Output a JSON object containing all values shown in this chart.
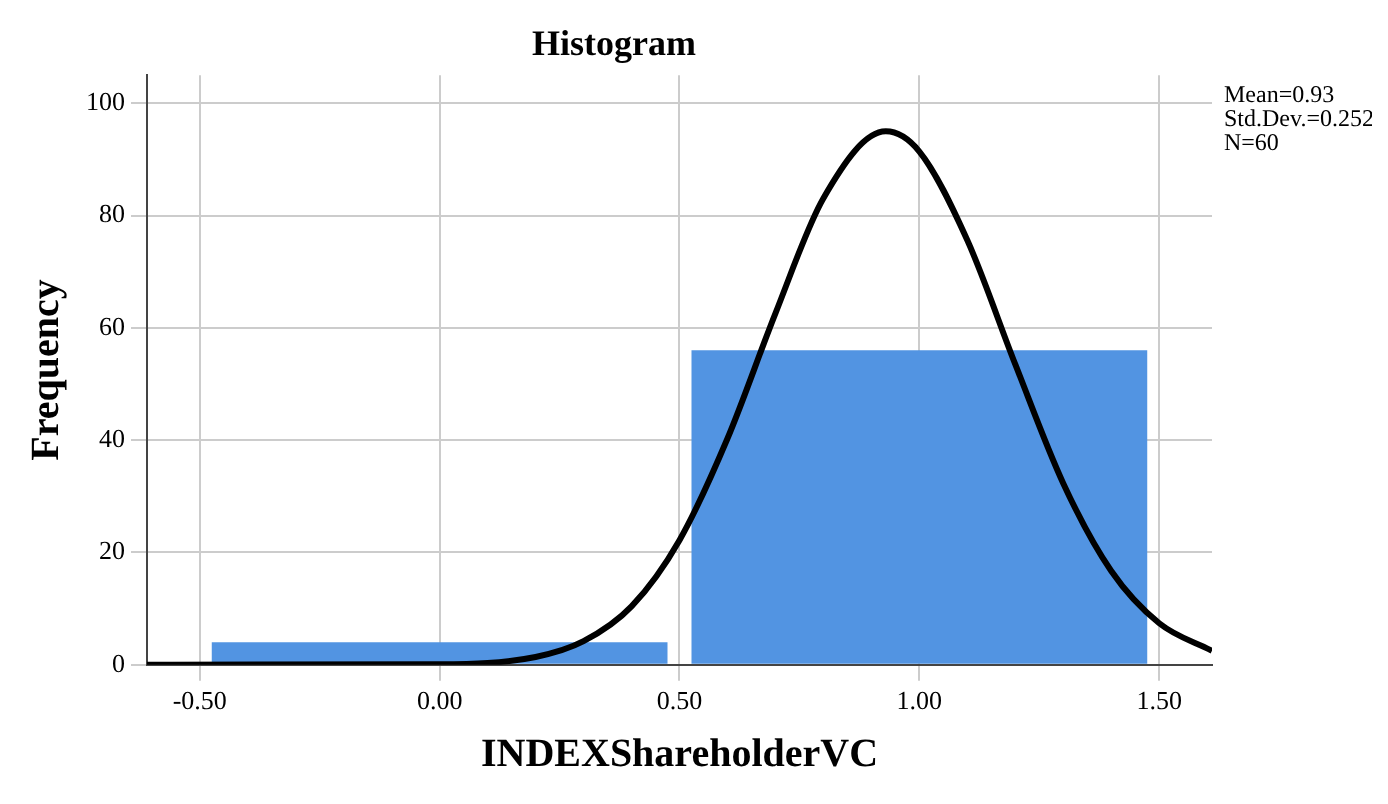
{
  "chart_data": {
    "type": "histogram",
    "title": "Histogram",
    "xlabel": "INDEXShareholderVC",
    "ylabel": "Frequency",
    "bins": [
      -0.5,
      0.5,
      1.5
    ],
    "values": [
      4,
      56
    ],
    "color": "#5294e2",
    "series": [
      {
        "type": "line",
        "color": "#000000",
        "marker": "none",
        "x": [
          -0.61,
          0.0,
          0.2,
          0.3,
          0.4,
          0.5,
          0.6,
          0.7,
          0.8,
          0.93,
          1.0,
          1.1,
          1.2,
          1.3,
          1.4,
          1.5,
          1.61
        ],
        "values": [
          0,
          0.1,
          1.4,
          4.2,
          10.4,
          22.2,
          40.3,
          62.6,
          83.1,
          95,
          91.4,
          75.6,
          53.5,
          32.3,
          16.7,
          7.4,
          2.5
        ]
      }
    ],
    "xlim": [
      -0.61,
      1.61
    ],
    "xticks": [
      {
        "value": -0.5,
        "label": "-0.50"
      },
      {
        "value": 0,
        "label": "0.00"
      },
      {
        "value": 0.5,
        "label": "0.50"
      },
      {
        "value": 1,
        "label": "1.00"
      },
      {
        "value": 1.5,
        "label": "1.50"
      }
    ],
    "ylim": [
      0,
      105
    ],
    "yticks": [
      0,
      20,
      40,
      60,
      80,
      100
    ],
    "grid": true,
    "legend": false,
    "annotations": [
      "Mean=0.93",
      "Std.Dev.=0.252",
      "N=60"
    ]
  }
}
